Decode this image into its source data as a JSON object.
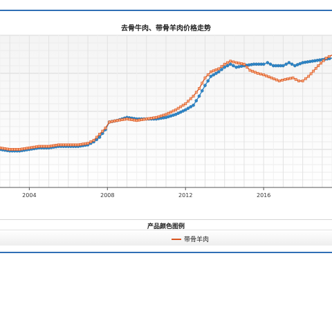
{
  "chart_data": {
    "type": "line",
    "title": "去骨牛肉、带骨羊肉价格走势",
    "xlabel": "",
    "ylabel": "",
    "xlim": [
      2002.5,
      2019.5
    ],
    "ylim": [
      0,
      1
    ],
    "x_ticks": [
      2004,
      2008,
      2012,
      2016
    ],
    "x_tick_labels": [
      "2004",
      "2008",
      "2012",
      "2016"
    ],
    "grid": true,
    "legend_title": "产品颜色图例",
    "legend_position": "bottom",
    "series": [
      {
        "color": "#2e86c8",
        "marker": "circle",
        "points": [
          [
            2002.5,
            0.25
          ],
          [
            2003.0,
            0.24
          ],
          [
            2003.5,
            0.24
          ],
          [
            2004.0,
            0.25
          ],
          [
            2004.5,
            0.26
          ],
          [
            2005.0,
            0.26
          ],
          [
            2005.5,
            0.27
          ],
          [
            2006.0,
            0.27
          ],
          [
            2006.5,
            0.27
          ],
          [
            2007.0,
            0.28
          ],
          [
            2007.3,
            0.3
          ],
          [
            2007.6,
            0.33
          ],
          [
            2007.9,
            0.38
          ],
          [
            2008.1,
            0.43
          ],
          [
            2008.5,
            0.44
          ],
          [
            2009.0,
            0.46
          ],
          [
            2009.5,
            0.45
          ],
          [
            2010.0,
            0.45
          ],
          [
            2010.5,
            0.45
          ],
          [
            2011.0,
            0.46
          ],
          [
            2011.5,
            0.48
          ],
          [
            2012.0,
            0.51
          ],
          [
            2012.4,
            0.54
          ],
          [
            2012.7,
            0.6
          ],
          [
            2013.0,
            0.67
          ],
          [
            2013.3,
            0.73
          ],
          [
            2013.7,
            0.76
          ],
          [
            2014.0,
            0.79
          ],
          [
            2014.3,
            0.81
          ],
          [
            2014.6,
            0.79
          ],
          [
            2015.0,
            0.8
          ],
          [
            2015.5,
            0.81
          ],
          [
            2016.0,
            0.81
          ],
          [
            2016.2,
            0.82
          ],
          [
            2016.5,
            0.8
          ],
          [
            2017.0,
            0.8
          ],
          [
            2017.3,
            0.82
          ],
          [
            2017.6,
            0.8
          ],
          [
            2018.0,
            0.82
          ],
          [
            2018.5,
            0.83
          ],
          [
            2019.0,
            0.84
          ],
          [
            2019.5,
            0.85
          ]
        ]
      },
      {
        "name": "带骨羊肉",
        "color": "#d9541e",
        "marker": "square",
        "points": [
          [
            2002.5,
            0.26
          ],
          [
            2003.0,
            0.25
          ],
          [
            2003.5,
            0.25
          ],
          [
            2004.0,
            0.26
          ],
          [
            2004.5,
            0.27
          ],
          [
            2005.0,
            0.27
          ],
          [
            2005.5,
            0.28
          ],
          [
            2006.0,
            0.28
          ],
          [
            2006.5,
            0.28
          ],
          [
            2007.0,
            0.29
          ],
          [
            2007.3,
            0.31
          ],
          [
            2007.6,
            0.35
          ],
          [
            2007.9,
            0.39
          ],
          [
            2008.1,
            0.43
          ],
          [
            2008.5,
            0.44
          ],
          [
            2009.0,
            0.45
          ],
          [
            2009.5,
            0.44
          ],
          [
            2010.0,
            0.45
          ],
          [
            2010.5,
            0.46
          ],
          [
            2011.0,
            0.48
          ],
          [
            2011.5,
            0.51
          ],
          [
            2012.0,
            0.55
          ],
          [
            2012.4,
            0.6
          ],
          [
            2012.7,
            0.65
          ],
          [
            2013.0,
            0.72
          ],
          [
            2013.3,
            0.76
          ],
          [
            2013.7,
            0.78
          ],
          [
            2014.0,
            0.81
          ],
          [
            2014.3,
            0.83
          ],
          [
            2014.6,
            0.82
          ],
          [
            2015.0,
            0.81
          ],
          [
            2015.3,
            0.77
          ],
          [
            2015.7,
            0.75
          ],
          [
            2016.0,
            0.74
          ],
          [
            2016.4,
            0.72
          ],
          [
            2016.8,
            0.7
          ],
          [
            2017.1,
            0.71
          ],
          [
            2017.5,
            0.72
          ],
          [
            2017.8,
            0.7
          ],
          [
            2018.0,
            0.7
          ],
          [
            2018.3,
            0.73
          ],
          [
            2018.8,
            0.8
          ],
          [
            2019.2,
            0.85
          ],
          [
            2019.5,
            0.87
          ]
        ]
      }
    ]
  }
}
